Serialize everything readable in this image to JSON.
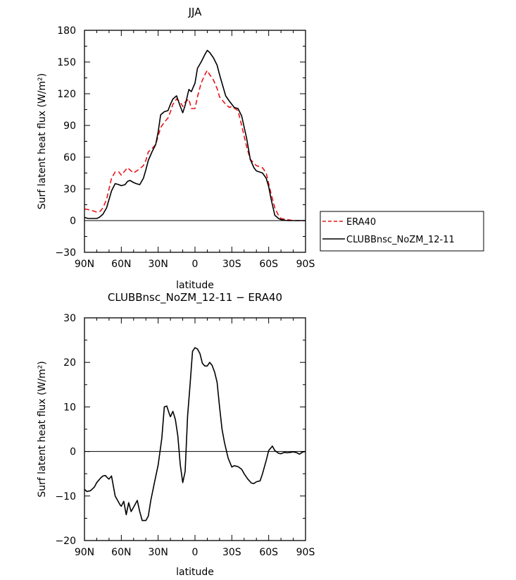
{
  "chart_data": [
    {
      "type": "line",
      "title": "JJA",
      "xlabel": "latitude",
      "ylabel": "Surf latent heat flux (W/m²)",
      "xlim": [
        90,
        -90
      ],
      "ylim": [
        -30,
        180
      ],
      "x_ticks": [
        {
          "v": 90,
          "label": "90N"
        },
        {
          "v": 60,
          "label": "60N"
        },
        {
          "v": 30,
          "label": "30N"
        },
        {
          "v": 0,
          "label": "0"
        },
        {
          "v": -30,
          "label": "30S"
        },
        {
          "v": -60,
          "label": "60S"
        },
        {
          "v": -90,
          "label": "90S"
        }
      ],
      "y_ticks": [
        {
          "v": -30,
          "label": "−30"
        },
        {
          "v": 0,
          "label": "0"
        },
        {
          "v": 30,
          "label": "30"
        },
        {
          "v": 60,
          "label": "60"
        },
        {
          "v": 90,
          "label": "90"
        },
        {
          "v": 120,
          "label": "120"
        },
        {
          "v": 150,
          "label": "150"
        },
        {
          "v": 180,
          "label": "180"
        }
      ],
      "legend_position": "right",
      "series": [
        {
          "name": "ERA40",
          "color": "#e8141a",
          "dash": true,
          "x": [
            90,
            85,
            80,
            77,
            75,
            72,
            70,
            68,
            65,
            62,
            60,
            55,
            50,
            45,
            42,
            40,
            38,
            35,
            32,
            30,
            28,
            25,
            22,
            20,
            18,
            15,
            12,
            10,
            8,
            5,
            3,
            0,
            -2,
            -5,
            -8,
            -10,
            -12,
            -15,
            -18,
            -20,
            -25,
            -28,
            -30,
            -35,
            -38,
            -42,
            -45,
            -50,
            -55,
            -58,
            -60,
            -62,
            -65,
            -68,
            -70,
            -75,
            -80,
            -85,
            -90
          ],
          "y": [
            11,
            10,
            8,
            9,
            12,
            20,
            30,
            40,
            46,
            46,
            43,
            50,
            45,
            49,
            52,
            57,
            65,
            68,
            72,
            80,
            88,
            93,
            97,
            103,
            110,
            115,
            112,
            108,
            112,
            115,
            106,
            106,
            117,
            130,
            138,
            142,
            138,
            133,
            125,
            117,
            110,
            107,
            108,
            104,
            90,
            70,
            58,
            52,
            50,
            45,
            35,
            25,
            12,
            5,
            2,
            1,
            0,
            0,
            0
          ]
        },
        {
          "name": "CLUBBnsc_NoZM_12-11",
          "color": "#000000",
          "dash": false,
          "x": [
            90,
            87,
            83,
            80,
            78,
            75,
            72,
            70,
            68,
            65,
            62,
            60,
            57,
            55,
            53,
            50,
            48,
            45,
            42,
            40,
            38,
            35,
            32,
            30,
            28,
            25,
            22,
            20,
            18,
            15,
            12,
            10,
            8,
            5,
            3,
            0,
            -2,
            -5,
            -8,
            -10,
            -12,
            -15,
            -18,
            -20,
            -23,
            -25,
            -28,
            -30,
            -32,
            -35,
            -38,
            -42,
            -45,
            -48,
            -50,
            -55,
            -58,
            -60,
            -62,
            -65,
            -68,
            -70,
            -75,
            -80,
            -85,
            -90
          ],
          "y": [
            3,
            2,
            2,
            2,
            3,
            6,
            12,
            20,
            28,
            35,
            34,
            33,
            34,
            37,
            38,
            36,
            35,
            34,
            40,
            48,
            57,
            65,
            72,
            84,
            100,
            103,
            104,
            110,
            115,
            118,
            108,
            102,
            109,
            124,
            122,
            130,
            144,
            150,
            157,
            161,
            159,
            154,
            147,
            138,
            126,
            118,
            113,
            110,
            107,
            106,
            99,
            78,
            58,
            50,
            47,
            45,
            40,
            32,
            20,
            5,
            2,
            1,
            0,
            0,
            0,
            0
          ]
        }
      ]
    },
    {
      "type": "line",
      "title": "CLUBBnsc_NoZM_12-11 − ERA40",
      "xlabel": "latitude",
      "ylabel": "Surf latent heat flux (W/m²)",
      "xlim": [
        90,
        -90
      ],
      "ylim": [
        -20,
        30
      ],
      "x_ticks": [
        {
          "v": 90,
          "label": "90N"
        },
        {
          "v": 60,
          "label": "60N"
        },
        {
          "v": 30,
          "label": "30N"
        },
        {
          "v": 0,
          "label": "0"
        },
        {
          "v": -30,
          "label": "30S"
        },
        {
          "v": -60,
          "label": "60S"
        },
        {
          "v": -90,
          "label": "90S"
        }
      ],
      "y_ticks": [
        {
          "v": -20,
          "label": "−20"
        },
        {
          "v": -10,
          "label": "−10"
        },
        {
          "v": 0,
          "label": "0"
        },
        {
          "v": 10,
          "label": "10"
        },
        {
          "v": 20,
          "label": "20"
        },
        {
          "v": 30,
          "label": "30"
        }
      ],
      "series": [
        {
          "name": "",
          "color": "#000000",
          "dash": false,
          "x": [
            90,
            88,
            85,
            82,
            80,
            77,
            75,
            73,
            71,
            70,
            68,
            65,
            63,
            61,
            60,
            58,
            56,
            54,
            52,
            50,
            47,
            45,
            43,
            40,
            38,
            36,
            33,
            30,
            27,
            25,
            23,
            21,
            20,
            18,
            16,
            14,
            12,
            10,
            8,
            6,
            4,
            2,
            0,
            -2,
            -4,
            -6,
            -8,
            -10,
            -12,
            -14,
            -16,
            -18,
            -20,
            -22,
            -24,
            -27,
            -30,
            -32,
            -35,
            -38,
            -40,
            -43,
            -46,
            -48,
            -50,
            -53,
            -55,
            -58,
            -60,
            -63,
            -65,
            -68,
            -70,
            -73,
            -75,
            -78,
            -80,
            -83,
            -85,
            -88,
            -90
          ],
          "y": [
            -8.5,
            -9,
            -8.8,
            -8,
            -7,
            -6,
            -5.5,
            -5.4,
            -6,
            -6.2,
            -5.5,
            -10,
            -11,
            -12,
            -12.3,
            -11.2,
            -14.2,
            -11.5,
            -13.5,
            -12.5,
            -11,
            -13.5,
            -15.5,
            -15.5,
            -14.5,
            -11,
            -7,
            -3,
            3,
            10,
            10.2,
            8.5,
            7.8,
            9,
            7.2,
            3.5,
            -3,
            -7,
            -4.5,
            8,
            15,
            22.5,
            23.3,
            23,
            22,
            19.8,
            19.2,
            19.2,
            20,
            19.3,
            17.8,
            15.5,
            10,
            5,
            2,
            -1.5,
            -3.5,
            -3.2,
            -3.4,
            -4,
            -5,
            -6.2,
            -7.1,
            -7.2,
            -6.8,
            -6.6,
            -5,
            -2,
            0.2,
            1.2,
            0.2,
            -0.4,
            -0.5,
            -0.2,
            -0.3,
            -0.2,
            -0.1,
            -0.3,
            -0.6,
            -0.1,
            0
          ]
        }
      ]
    }
  ]
}
